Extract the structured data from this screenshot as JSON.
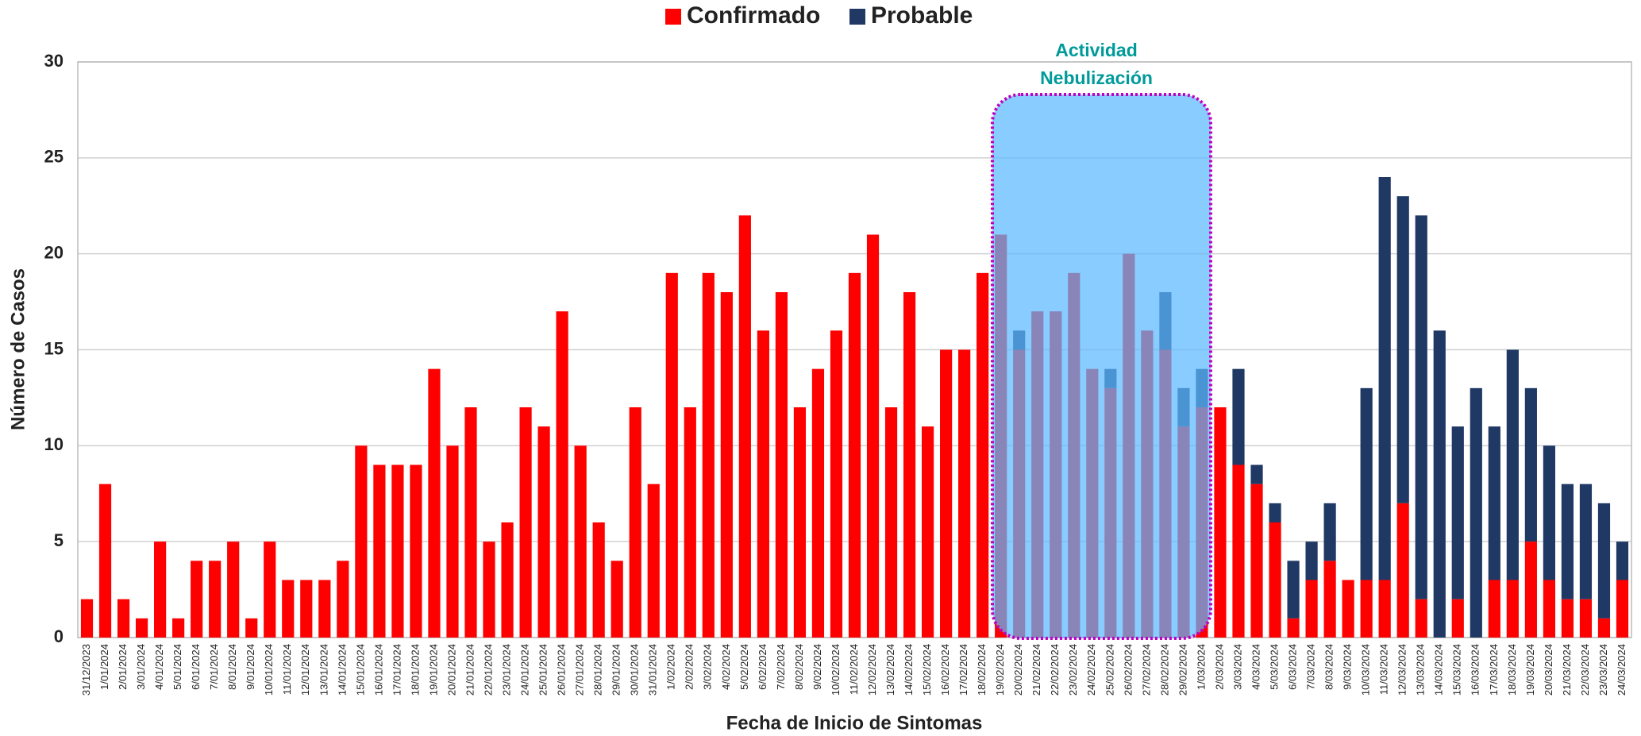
{
  "chart_data": {
    "type": "stacked_bar",
    "x_label": "Fecha de Inicio de Sintomas",
    "y_label": "Número de Casos",
    "annotation": [
      "Actividad",
      "Nebulización"
    ],
    "categories": [
      "31/12/2023",
      "1/01/2024",
      "2/01/2024",
      "3/01/2024",
      "4/01/2024",
      "5/01/2024",
      "6/01/2024",
      "7/01/2024",
      "8/01/2024",
      "9/01/2024",
      "10/01/2024",
      "11/01/2024",
      "12/01/2024",
      "13/01/2024",
      "14/01/2024",
      "15/01/2024",
      "16/01/2024",
      "17/01/2024",
      "18/01/2024",
      "19/01/2024",
      "20/01/2024",
      "21/01/2024",
      "22/01/2024",
      "23/01/2024",
      "24/01/2024",
      "25/01/2024",
      "26/01/2024",
      "27/01/2024",
      "28/01/2024",
      "29/01/2024",
      "30/01/2024",
      "31/01/2024",
      "1/02/2024",
      "2/02/2024",
      "3/02/2024",
      "4/02/2024",
      "5/02/2024",
      "6/02/2024",
      "7/02/2024",
      "8/02/2024",
      "9/02/2024",
      "10/02/2024",
      "11/02/2024",
      "12/02/2024",
      "13/02/2024",
      "14/02/2024",
      "15/02/2024",
      "16/02/2024",
      "17/02/2024",
      "18/02/2024",
      "19/02/2024",
      "20/02/2024",
      "21/02/2024",
      "22/02/2024",
      "23/02/2024",
      "24/02/2024",
      "25/02/2024",
      "26/02/2024",
      "27/02/2024",
      "28/02/2024",
      "29/02/2024",
      "1/03/2024",
      "2/03/2024",
      "3/03/2024",
      "4/03/2024",
      "5/03/2024",
      "6/03/2024",
      "7/03/2024",
      "8/03/2024",
      "9/03/2024",
      "10/03/2024",
      "11/03/2024",
      "12/03/2024",
      "13/03/2024",
      "14/03/2024",
      "15/03/2024",
      "16/03/2024",
      "17/03/2024",
      "18/03/2024",
      "19/03/2024",
      "20/03/2024",
      "21/03/2024",
      "22/03/2024",
      "23/03/2024",
      "24/03/2024"
    ],
    "series": [
      {
        "name": "Confirmado",
        "color": "#ff0000",
        "values": [
          2,
          8,
          2,
          1,
          5,
          1,
          4,
          4,
          5,
          1,
          5,
          3,
          3,
          3,
          4,
          10,
          9,
          9,
          9,
          14,
          10,
          12,
          5,
          6,
          12,
          11,
          17,
          10,
          6,
          4,
          12,
          8,
          19,
          12,
          19,
          18,
          22,
          16,
          18,
          12,
          14,
          16,
          19,
          21,
          12,
          18,
          11,
          15,
          15,
          19,
          21,
          15,
          17,
          17,
          19,
          14,
          13,
          20,
          16,
          15,
          11,
          12,
          12,
          9,
          8,
          6,
          1,
          3,
          4,
          3,
          3,
          3,
          7,
          2,
          0,
          2,
          0,
          3,
          3,
          5,
          3,
          2,
          2,
          1,
          3
        ]
      },
      {
        "name": "Probable",
        "color": "#1f3864",
        "values": [
          0,
          0,
          0,
          0,
          0,
          0,
          0,
          0,
          0,
          0,
          0,
          0,
          0,
          0,
          0,
          0,
          0,
          0,
          0,
          0,
          0,
          0,
          0,
          0,
          0,
          0,
          0,
          0,
          0,
          0,
          0,
          0,
          0,
          0,
          0,
          0,
          0,
          0,
          0,
          0,
          0,
          0,
          0,
          0,
          0,
          0,
          0,
          0,
          0,
          0,
          0,
          1,
          0,
          0,
          0,
          0,
          1,
          0,
          0,
          3,
          2,
          2,
          0,
          5,
          1,
          1,
          3,
          2,
          3,
          0,
          10,
          21,
          16,
          20,
          16,
          9,
          13,
          8,
          12,
          8,
          7,
          6,
          6,
          6,
          2
        ]
      }
    ],
    "ylim": [
      0,
      30
    ],
    "yticks": [
      0,
      5,
      10,
      15,
      20,
      25,
      30
    ],
    "grid": true,
    "legend": "top"
  }
}
